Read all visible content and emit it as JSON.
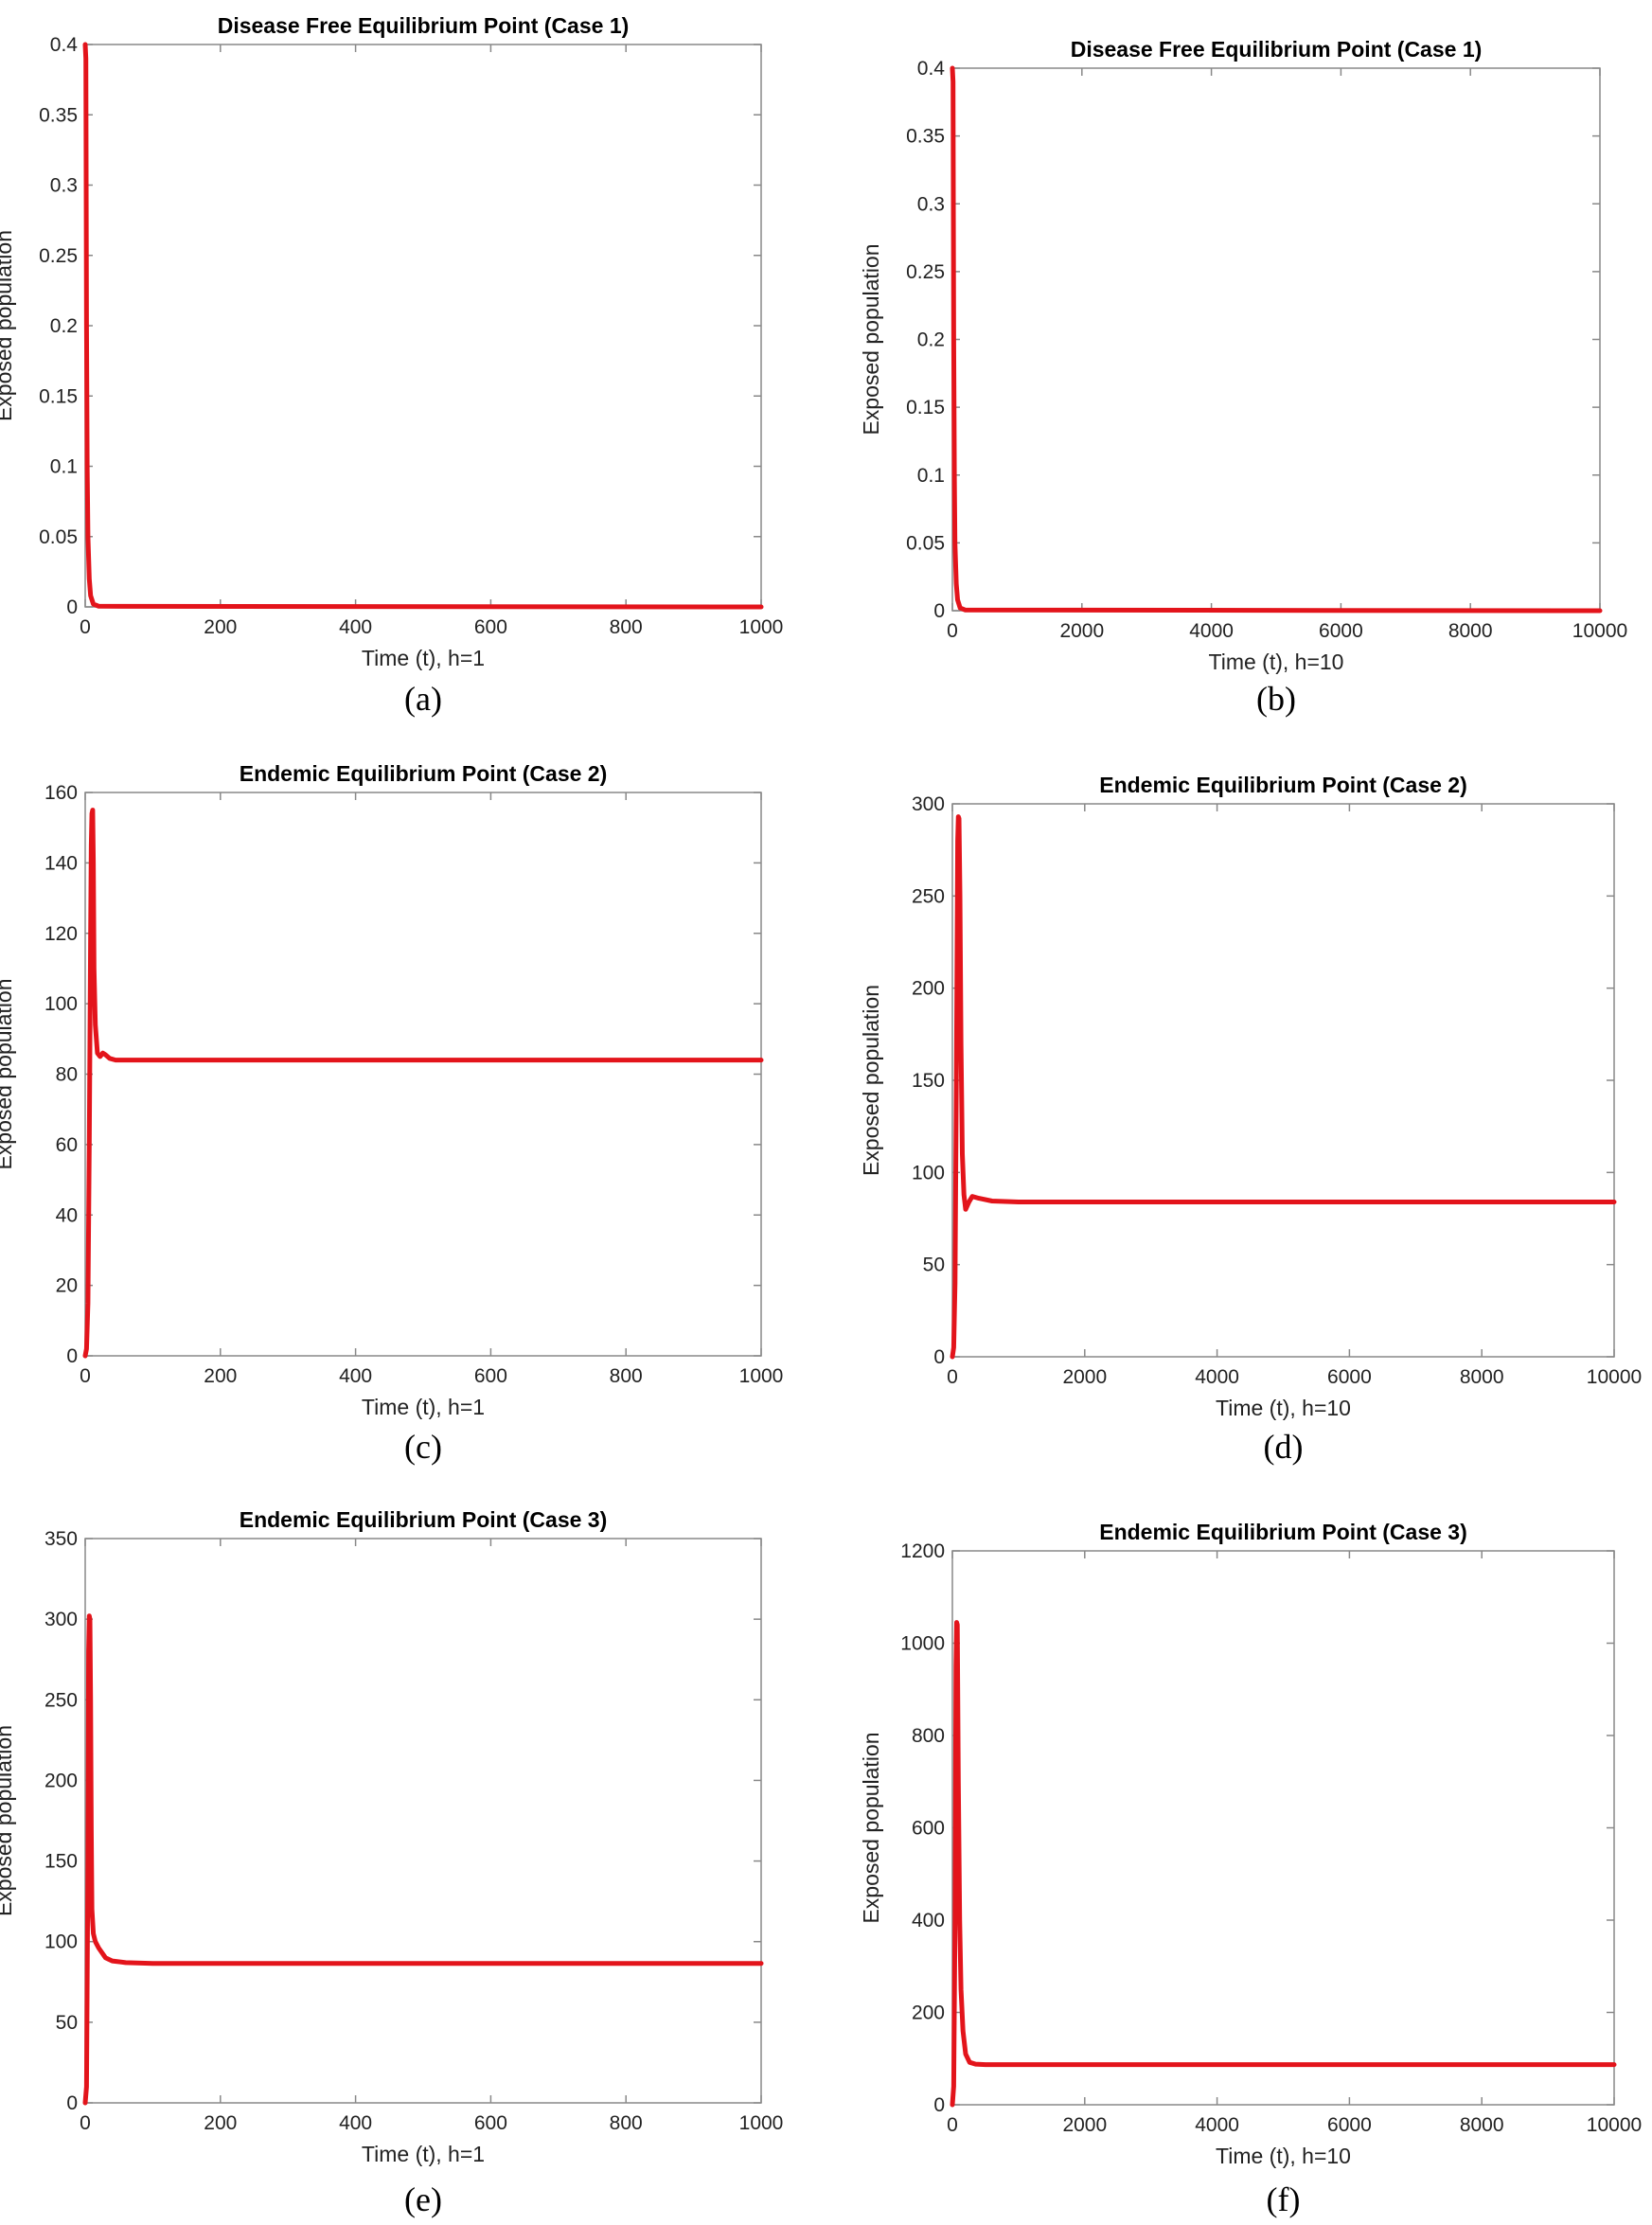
{
  "colors": {
    "series": "#e3141b",
    "frame": "#888888",
    "text": "#222222"
  },
  "chart_data": [
    {
      "id": "a",
      "type": "line",
      "title": "Disease Free Equilibrium Point (Case 1)",
      "xlabel": "Time (t), h=1",
      "ylabel": "Exposed population",
      "caption": "(a)",
      "xlim": [
        0,
        1000
      ],
      "ylim": [
        0,
        0.4
      ],
      "xticks": [
        0,
        200,
        400,
        600,
        800,
        1000
      ],
      "yticks": [
        0,
        0.05,
        0.1,
        0.15,
        0.2,
        0.25,
        0.3,
        0.35,
        0.4
      ],
      "series": [
        {
          "x": [
            0,
            1,
            2,
            3,
            4,
            6,
            8,
            12,
            20,
            1000
          ],
          "y": [
            0.4,
            0.39,
            0.2,
            0.1,
            0.05,
            0.02,
            0.008,
            0.002,
            0.0005,
            0
          ]
        }
      ]
    },
    {
      "id": "b",
      "type": "line",
      "title": "Disease Free Equilibrium Point (Case 1)",
      "xlabel": "Time (t), h=10",
      "ylabel": "Exposed population",
      "caption": "(b)",
      "xlim": [
        0,
        10000
      ],
      "ylim": [
        0,
        0.4
      ],
      "xticks": [
        0,
        2000,
        4000,
        6000,
        8000,
        10000
      ],
      "yticks": [
        0,
        0.05,
        0.1,
        0.15,
        0.2,
        0.25,
        0.3,
        0.35,
        0.4
      ],
      "series": [
        {
          "x": [
            0,
            10,
            20,
            30,
            40,
            60,
            80,
            120,
            200,
            10000
          ],
          "y": [
            0.4,
            0.39,
            0.2,
            0.1,
            0.05,
            0.02,
            0.008,
            0.002,
            0.0005,
            0
          ]
        }
      ]
    },
    {
      "id": "c",
      "type": "line",
      "title": "Endemic Equilibrium Point (Case 2)",
      "xlabel": "Time (t), h=1",
      "ylabel": "Exposed population",
      "caption": "(c)",
      "xlim": [
        0,
        1000
      ],
      "ylim": [
        0,
        160
      ],
      "xticks": [
        0,
        200,
        400,
        600,
        800,
        1000
      ],
      "yticks": [
        0,
        20,
        40,
        60,
        80,
        100,
        120,
        140,
        160
      ],
      "series": [
        {
          "x": [
            0,
            2,
            4,
            6,
            8,
            9,
            10,
            11,
            12,
            13,
            15,
            18,
            22,
            26,
            30,
            36,
            45,
            60,
            80,
            1000
          ],
          "y": [
            0,
            2,
            15,
            60,
            120,
            145,
            154,
            155,
            140,
            110,
            94,
            86,
            85,
            86,
            85.5,
            84.5,
            84,
            84,
            84,
            84
          ]
        }
      ]
    },
    {
      "id": "d",
      "type": "line",
      "title": "Endemic Equilibrium Point (Case 2)",
      "xlabel": "Time (t), h=10",
      "ylabel": "Exposed population",
      "caption": "(d)",
      "xlim": [
        0,
        10000
      ],
      "ylim": [
        0,
        300
      ],
      "xticks": [
        0,
        2000,
        4000,
        6000,
        8000,
        10000
      ],
      "yticks": [
        0,
        50,
        100,
        150,
        200,
        250,
        300
      ],
      "series": [
        {
          "x": [
            0,
            20,
            40,
            60,
            80,
            90,
            100,
            115,
            130,
            150,
            175,
            200,
            250,
            300,
            400,
            600,
            1000,
            10000
          ],
          "y": [
            0,
            5,
            40,
            150,
            280,
            293,
            292,
            250,
            170,
            110,
            88,
            80,
            84,
            87,
            86,
            84.5,
            84,
            84
          ]
        }
      ]
    },
    {
      "id": "e",
      "type": "line",
      "title": "Endemic Equilibrium Point (Case 3)",
      "xlabel": "Time (t), h=1",
      "ylabel": "Exposed population",
      "caption": "(e)",
      "xlim": [
        0,
        1000
      ],
      "ylim": [
        0,
        350
      ],
      "xticks": [
        0,
        200,
        400,
        600,
        800,
        1000
      ],
      "yticks": [
        0,
        50,
        100,
        150,
        200,
        250,
        300,
        350
      ],
      "series": [
        {
          "x": [
            0,
            2,
            4,
            5,
            6,
            7,
            8,
            9,
            10,
            12,
            15,
            20,
            30,
            40,
            60,
            100,
            1000
          ],
          "y": [
            0,
            10,
            150,
            280,
            302,
            300,
            250,
            170,
            120,
            105,
            100,
            96,
            90,
            88,
            87,
            86.5,
            86.5
          ]
        }
      ]
    },
    {
      "id": "f",
      "type": "line",
      "title": "Endemic Equilibrium Point (Case 3)",
      "xlabel": "Time (t), h=10",
      "ylabel": "Exposed population",
      "caption": "(f)",
      "xlim": [
        0,
        10000
      ],
      "ylim": [
        0,
        1200
      ],
      "xticks": [
        0,
        2000,
        4000,
        6000,
        8000,
        10000
      ],
      "yticks": [
        0,
        200,
        400,
        600,
        800,
        1000,
        1200
      ],
      "series": [
        {
          "x": [
            0,
            20,
            40,
            55,
            65,
            75,
            90,
            110,
            130,
            160,
            200,
            260,
            350,
            500,
            10000
          ],
          "y": [
            0,
            40,
            400,
            950,
            1045,
            1040,
            700,
            400,
            250,
            160,
            110,
            92,
            88,
            87,
            87
          ]
        }
      ]
    }
  ]
}
